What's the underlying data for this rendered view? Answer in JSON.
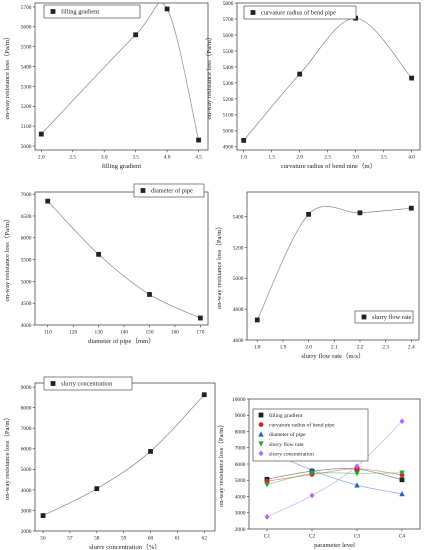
{
  "chart_data": [
    {
      "type": "line",
      "panel": "a",
      "xlabel": "filling gradient",
      "ylabel": "on-way resistance loss（Pa/m）",
      "x": [
        2.0,
        3.5,
        4.0,
        4.5
      ],
      "y": [
        5060,
        5560,
        5690,
        5030
      ],
      "xlim": [
        1.9,
        4.65
      ],
      "ylim": [
        4980,
        5720
      ],
      "xticks": [
        "2.0",
        "2.5",
        "3.0",
        "3.5",
        "4.0",
        "4.5"
      ],
      "xtick_values": [
        2.0,
        2.5,
        3.0,
        3.5,
        4.0,
        4.5
      ],
      "yticks": [
        "5000",
        "5100",
        "5200",
        "5300",
        "5400",
        "5500",
        "5600",
        "5700"
      ],
      "ytick_values": [
        5000,
        5100,
        5200,
        5300,
        5400,
        5500,
        5600,
        5700
      ],
      "legend": "filling gradient",
      "legend_position": "top-left"
    },
    {
      "type": "line",
      "panel": "b",
      "xlabel": "curvature radius of bend nine（m）",
      "ylabel": "on-way resistance loss（Pa/m）",
      "x": [
        1.0,
        2.0,
        3.0,
        4.0
      ],
      "y": [
        4940,
        5355,
        5705,
        5330
      ],
      "xlim": [
        0.88,
        4.15
      ],
      "ylim": [
        4880,
        5800
      ],
      "xticks": [
        "1.0",
        "1.5",
        "2.0",
        "2.5",
        "3.0",
        "3.5",
        "4.0"
      ],
      "xtick_values": [
        1.0,
        1.5,
        2.0,
        2.5,
        3.0,
        3.5,
        4.0
      ],
      "yticks": [
        "4900",
        "5000",
        "5100",
        "5200",
        "5300",
        "5400",
        "5500",
        "5600",
        "5700",
        "5800"
      ],
      "ytick_values": [
        4900,
        5000,
        5100,
        5200,
        5300,
        5400,
        5500,
        5600,
        5700,
        5800
      ],
      "legend": "curvature radius of bend pipe",
      "legend_position": "top-left"
    },
    {
      "type": "line",
      "panel": "c",
      "xlabel": "diameter of pipe（mm）",
      "ylabel": "on-way resistance loss（Pa/m）",
      "x": [
        110,
        130,
        150,
        170
      ],
      "y": [
        6840,
        5620,
        4700,
        4160
      ],
      "xlim": [
        105,
        173
      ],
      "ylim": [
        4000,
        7050
      ],
      "xticks": [
        "110",
        "120",
        "130",
        "140",
        "150",
        "160",
        "170"
      ],
      "xtick_values": [
        110,
        120,
        130,
        140,
        150,
        160,
        170
      ],
      "yticks": [
        "4000",
        "4500",
        "5000",
        "5500",
        "6000",
        "6500",
        "7000"
      ],
      "ytick_values": [
        4000,
        4500,
        5000,
        5500,
        6000,
        6500,
        7000
      ],
      "legend": "diameter of pipe",
      "legend_position": "top-right"
    },
    {
      "type": "line",
      "panel": "d",
      "xlabel": "slurry flow rate（m/s）",
      "ylabel": "on-way resistance loss（Pa/m）",
      "x": [
        1.8,
        2.0,
        2.2,
        2.4
      ],
      "y": [
        4730,
        5415,
        5425,
        5455
      ],
      "xlim": [
        1.76,
        2.43
      ],
      "ylim": [
        4600,
        5560
      ],
      "xticks": [
        "1.8",
        "1.9",
        "2.0",
        "2.1",
        "2.2",
        "2.3",
        "2.4"
      ],
      "xtick_values": [
        1.8,
        1.9,
        2.0,
        2.1,
        2.2,
        2.3,
        2.4
      ],
      "yticks": [
        "4600",
        "4800",
        "5000",
        "5200",
        "5400"
      ],
      "ytick_values": [
        4600,
        4800,
        5000,
        5200,
        5400
      ],
      "legend": "slurry flow rate",
      "legend_position": "bottom-right"
    },
    {
      "type": "line",
      "panel": "e",
      "xlabel": "slurry concentration（%）",
      "ylabel": "on-way resistance loss（Pa/m）",
      "x": [
        56,
        58,
        60,
        62
      ],
      "y": [
        2750,
        4060,
        5870,
        8630
      ],
      "xlim": [
        55.7,
        62.4
      ],
      "ylim": [
        2000,
        9200
      ],
      "xticks": [
        "56",
        "57",
        "58",
        "59",
        "60",
        "61",
        "62"
      ],
      "xtick_values": [
        56,
        57,
        58,
        59,
        60,
        61,
        62
      ],
      "yticks": [
        "2000",
        "3000",
        "4000",
        "5000",
        "6000",
        "7000",
        "8000",
        "9000"
      ],
      "ytick_values": [
        2000,
        3000,
        4000,
        5000,
        6000,
        7000,
        8000,
        9000
      ],
      "legend": "slurry concentration",
      "legend_position": "top-left"
    },
    {
      "type": "line",
      "panel": "f",
      "xlabel": "parameter level",
      "ylabel": "on-way resistance loss（Pa/m）",
      "categories": [
        "C1",
        "C2",
        "C3",
        "C4"
      ],
      "ylim": [
        2000,
        10000
      ],
      "yticks": [
        "2000",
        "3000",
        "4000",
        "5000",
        "6000",
        "7000",
        "8000",
        "9000",
        "10000"
      ],
      "ytick_values": [
        2000,
        3000,
        4000,
        5000,
        6000,
        7000,
        8000,
        9000,
        10000
      ],
      "legend_position": "top-left",
      "series": [
        {
          "name": "filling gradient",
          "values": [
            5060,
            5560,
            5690,
            5030
          ],
          "color": "#222222",
          "marker": "square"
        },
        {
          "name": "curvature radius of bend pipe",
          "values": [
            4940,
            5355,
            5705,
            5330
          ],
          "color": "#d62728",
          "marker": "circle"
        },
        {
          "name": "diameter of pipe",
          "values": [
            6840,
            5620,
            4700,
            4160
          ],
          "color": "#1f5fbf",
          "marker": "triangle-up"
        },
        {
          "name": "slurry flow rate",
          "values": [
            4730,
            5415,
            5425,
            5455
          ],
          "color": "#2ca02c",
          "marker": "triangle-down"
        },
        {
          "name": "slurry concentration",
          "values": [
            2750,
            4060,
            5870,
            8630
          ],
          "color": "#b266ff",
          "marker": "diamond"
        }
      ]
    }
  ]
}
